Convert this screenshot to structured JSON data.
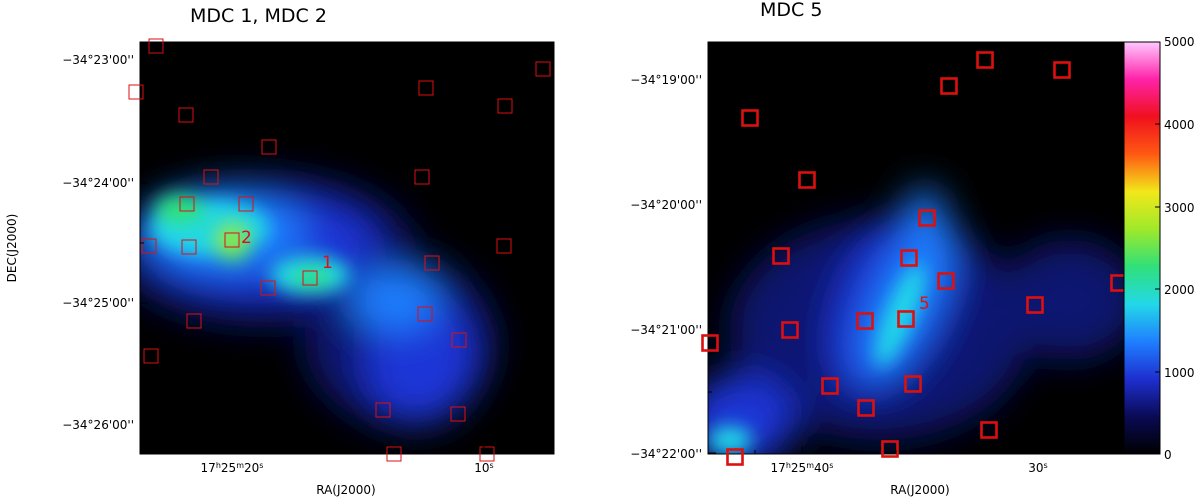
{
  "figure": {
    "panels": [
      {
        "title": "MDC 1, MDC 2",
        "ylabel": "DEC(J2000)",
        "xlabel": "RA(J2000)",
        "y_ticks": [
          "−34°23'00''",
          "−34°24'00''",
          "−34°25'00''",
          "−34°26'00''"
        ],
        "x_ticks": [
          {
            "h": "17",
            "m": "25",
            "s": "20"
          },
          {
            "s": "10"
          }
        ],
        "source_labels": [
          "1",
          "2"
        ]
      },
      {
        "title": "MDC 5",
        "xlabel": "RA(J2000)",
        "y_ticks": [
          "−34°19'00''",
          "−34°20'00''",
          "−34°21'00''",
          "−34°22'00''"
        ],
        "x_ticks": [
          {
            "h": "17",
            "m": "25",
            "s": "40"
          },
          {
            "s": "30"
          }
        ],
        "source_labels": [
          "5"
        ]
      }
    ],
    "colorbar": {
      "ticks": [
        "5000",
        "4000",
        "3000",
        "2000",
        "1000",
        "0"
      ],
      "colors": [
        "#000000",
        "#0a0a55",
        "#1e2fd0",
        "#1f7fff",
        "#22d8e8",
        "#2fe07a",
        "#9fe92a",
        "#f2e81a",
        "#ff5a12",
        "#f0101e",
        "#ff22a8",
        "#ffc8ff"
      ]
    },
    "marker_color": "#dd1010"
  }
}
